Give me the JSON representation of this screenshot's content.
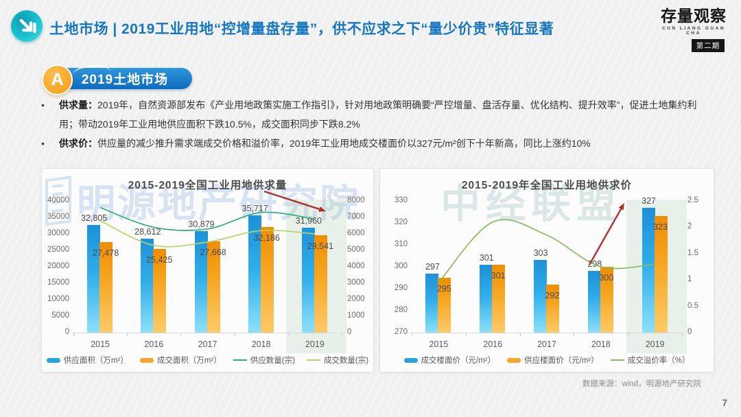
{
  "header": {
    "title": "土地市场 | 2019工业用地“控增量盘存量”，供不应求之下“量少价贵”特征显著",
    "logo": {
      "title": "存量观察",
      "subtitle": "CUN LIANG GUAN CHA",
      "badge": "第二期"
    }
  },
  "section": {
    "badge": "A",
    "label": "2019土地市场"
  },
  "bullets": [
    {
      "lead": "供求量：",
      "text": "2019年，自然资源部发布《产业用地政策实施工作指引》，针对用地政策明确要“严控增量、盘活存量、优化结构、提升效率”，促进土地集约利用；带动2019年工业用地供应面积下跌10.5%，成交面积同步下跌8.2%"
    },
    {
      "lead": "供求价：",
      "text": "供应量的减少推升需求端成交价格和溢价率，2019年工业用地成交楼面价以327元/m²创下十年新高，同比上涨约10%"
    }
  ],
  "watermarks": {
    "left": "明源地产研究院",
    "right": "中经联盟"
  },
  "colors": {
    "accent_blue": "#1677c0",
    "bar_blue": "#29a3dd",
    "bar_orange": "#f7a428",
    "line_teal_green": "#2fae7d",
    "line_light_green": "#b4d467",
    "line_olive_green": "#8cb85e",
    "arrow_red": "#b03030"
  },
  "chart_data": [
    {
      "type": "bar",
      "title": "2015-2019全国工业用地供求量",
      "categories": [
        "2015",
        "2016",
        "2017",
        "2018",
        "2019"
      ],
      "left_axis": {
        "min": 0,
        "max": 40000,
        "ticks": [
          "40000",
          "35000",
          "30000",
          "25000",
          "20000",
          "15000",
          "10000",
          "5000",
          "0"
        ]
      },
      "right_axis": {
        "min": 0,
        "max": 8000,
        "ticks": [
          "8000",
          "7000",
          "6000",
          "5000",
          "4000",
          "3000",
          "2000",
          "1000",
          "0"
        ]
      },
      "bar_series": [
        {
          "name": "供应面积（万m²）",
          "color": "#29a3dd",
          "style": "blue",
          "values": [
            32805,
            28612,
            30879,
            35717,
            31960
          ],
          "labels": [
            "32,805",
            "28,612",
            "30,879",
            "35,717",
            "31,960"
          ]
        },
        {
          "name": "成交面积（万m²）",
          "color": "#f7a428",
          "style": "orange",
          "values": [
            27478,
            25425,
            27668,
            32186,
            29541
          ],
          "labels": [
            "27,478",
            "25,425",
            "27,668",
            "32,186",
            "29,541"
          ]
        }
      ],
      "line_series": [
        {
          "name": "供应数量(宗)",
          "color": "#2fae7d",
          "axis": "right",
          "values": [
            7600,
            6400,
            6300,
            7300,
            6900
          ]
        },
        {
          "name": "成交数量(宗)",
          "color": "#b4d467",
          "axis": "right",
          "values": [
            6800,
            5300,
            5500,
            6200,
            6000
          ]
        }
      ],
      "highlight_index": 4,
      "trend_arrow": "down",
      "legend_position": "bottom",
      "grid": false
    },
    {
      "type": "bar",
      "title": "2015-2019年全国工业用地供求价",
      "categories": [
        "2015",
        "2016",
        "2017",
        "2018",
        "2019"
      ],
      "left_axis": {
        "min": 270,
        "max": 330,
        "ticks": [
          "330",
          "320",
          "310",
          "300",
          "290",
          "280",
          "270"
        ]
      },
      "right_axis": {
        "min": 0,
        "max": 2.5,
        "ticks": [
          "2.5",
          "2",
          "1.5",
          "1",
          "0.5",
          "0"
        ]
      },
      "bar_series": [
        {
          "name": "成交楼面价（元/m²）",
          "color": "#29a3dd",
          "style": "blue",
          "values": [
            297,
            301,
            303,
            298,
            327
          ],
          "labels": [
            "297",
            "301",
            "303",
            "298",
            "327"
          ]
        },
        {
          "name": "供应楼面价（元/m²）",
          "color": "#f7a428",
          "style": "orange",
          "values": [
            295,
            301,
            292,
            300,
            323
          ],
          "labels": [
            "295",
            "301",
            "292",
            "300",
            "323"
          ]
        }
      ],
      "line_series": [
        {
          "name": "成交溢价率（%）",
          "color": "#8cb85e",
          "axis": "right",
          "values": [
            0.95,
            2.1,
            1.85,
            1.25,
            1.3
          ]
        }
      ],
      "highlight_index": 4,
      "trend_arrow": "up",
      "legend_position": "bottom",
      "grid": false
    }
  ],
  "footer": {
    "source": "数据来源：wind，明源地产研究院",
    "page": "7"
  }
}
